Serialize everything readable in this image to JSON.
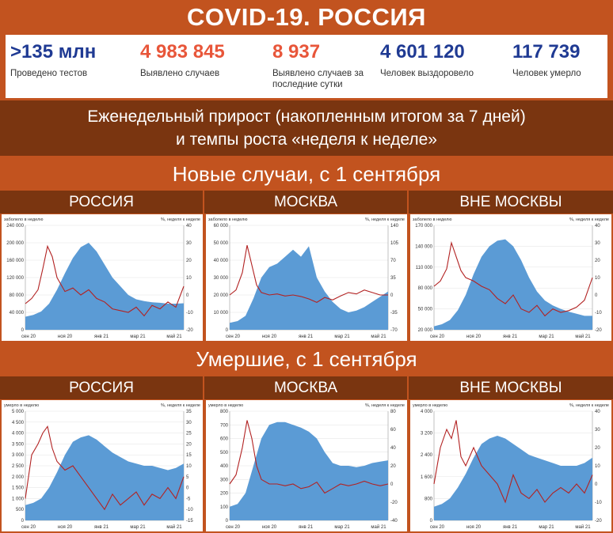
{
  "title": "COVID-19. РОССИЯ",
  "stats": [
    {
      "value": ">135 млн",
      "label": "Проведено тестов",
      "color": "#1f3a93"
    },
    {
      "value": "4 983 845",
      "label": "Выявлено случаев",
      "color": "#e8563a"
    },
    {
      "value": "8 937",
      "label": "Выявлено случаев за последние сутки",
      "color": "#e8563a"
    },
    {
      "value": "4 601 120",
      "label": "Человек выздоровело",
      "color": "#1f3a93"
    },
    {
      "value": "117 739",
      "label": "Человек умерло",
      "color": "#1f3a93"
    }
  ],
  "banner": {
    "line1": "Еженедельный прирост (накопленным итогом за 7 дней)",
    "line2": "и темпы роста «неделя к неделе»"
  },
  "section_cases": "Новые случаи, с 1 сентября",
  "section_deaths": "Умершие, с 1 сентября",
  "colors": {
    "area": "#5b9bd5",
    "line": "#b22222"
  },
  "chart_data": [
    {
      "id": "cases-russia",
      "type": "area",
      "region": "РОССИЯ",
      "ylabel": "заболело в неделю",
      "y2label": "%, неделя к неделе",
      "ylim": [
        0,
        240000
      ],
      "yticks": [
        "0",
        "40 000",
        "80 000",
        "120 000",
        "160 000",
        "200 000",
        "240 000"
      ],
      "y2lim": [
        -20,
        40
      ],
      "y2ticks": [
        "-20",
        "-10",
        "0",
        "10",
        "20",
        "30",
        "40"
      ],
      "xticks": [
        "сен 20",
        "ноя 20",
        "янв 21",
        "мар 21",
        "май 21"
      ],
      "series": [
        {
          "name": "",
          "kind": "area",
          "x": [
            0,
            0.05,
            0.1,
            0.15,
            0.2,
            0.25,
            0.3,
            0.35,
            0.4,
            0.45,
            0.5,
            0.55,
            0.6,
            0.65,
            0.7,
            0.75,
            0.8,
            0.85,
            0.9,
            0.95,
            1
          ],
          "values": [
            30000,
            34000,
            42000,
            60000,
            92000,
            130000,
            165000,
            190000,
            200000,
            180000,
            150000,
            120000,
            100000,
            80000,
            70000,
            66000,
            63000,
            62000,
            60000,
            60000,
            61000
          ]
        },
        {
          "name": "",
          "kind": "line",
          "x": [
            0,
            0.04,
            0.08,
            0.11,
            0.14,
            0.17,
            0.2,
            0.25,
            0.3,
            0.35,
            0.4,
            0.45,
            0.5,
            0.55,
            0.6,
            0.65,
            0.7,
            0.75,
            0.8,
            0.85,
            0.9,
            0.95,
            1
          ],
          "values": [
            -5,
            -2,
            3,
            15,
            28,
            22,
            10,
            2,
            4,
            0,
            3,
            -2,
            -4,
            -8,
            -9,
            -10,
            -7,
            -12,
            -6,
            -8,
            -4,
            -7,
            5
          ]
        }
      ]
    },
    {
      "id": "cases-moscow",
      "type": "area",
      "region": "МОСКВА",
      "ylabel": "заболело в неделю",
      "y2label": "%, неделя к неделе",
      "ylim": [
        0,
        60000
      ],
      "yticks": [
        "0",
        "10 000",
        "20 000",
        "30 000",
        "40 000",
        "50 000",
        "60 000"
      ],
      "y2lim": [
        -70,
        140
      ],
      "y2ticks": [
        "-70",
        "-35",
        "0",
        "35",
        "70",
        "105",
        "140"
      ],
      "xticks": [
        "сен 20",
        "ноя 20",
        "янв 21",
        "мар 21",
        "май 21"
      ],
      "series": [
        {
          "name": "",
          "kind": "area",
          "x": [
            0,
            0.05,
            0.1,
            0.15,
            0.2,
            0.25,
            0.3,
            0.35,
            0.4,
            0.45,
            0.5,
            0.55,
            0.6,
            0.65,
            0.7,
            0.75,
            0.8,
            0.85,
            0.9,
            0.95,
            1
          ],
          "values": [
            4000,
            5000,
            8000,
            18000,
            30000,
            36000,
            38000,
            42000,
            46000,
            42000,
            48000,
            30000,
            22000,
            16000,
            12000,
            10000,
            11000,
            13000,
            16000,
            19000,
            22000
          ]
        },
        {
          "name": "",
          "kind": "line",
          "x": [
            0,
            0.04,
            0.08,
            0.11,
            0.14,
            0.17,
            0.2,
            0.25,
            0.3,
            0.35,
            0.4,
            0.45,
            0.5,
            0.55,
            0.6,
            0.65,
            0.7,
            0.75,
            0.8,
            0.85,
            0.9,
            0.95,
            1
          ],
          "values": [
            0,
            10,
            45,
            100,
            60,
            20,
            5,
            0,
            2,
            -2,
            0,
            -3,
            -8,
            -15,
            -5,
            -10,
            -2,
            5,
            2,
            10,
            5,
            0,
            0
          ]
        }
      ]
    },
    {
      "id": "cases-outside",
      "type": "area",
      "region": "ВНЕ МОСКВЫ",
      "ylabel": "заболело в неделю",
      "y2label": "%, неделя к неделе",
      "ylim": [
        20000,
        170000
      ],
      "yticks": [
        "20 000",
        "50 000",
        "80 000",
        "110 000",
        "140 000",
        "170 000"
      ],
      "y2lim": [
        -20,
        40
      ],
      "y2ticks": [
        "-20",
        "-10",
        "0",
        "10",
        "20",
        "30",
        "40"
      ],
      "xticks": [
        "сен 20",
        "ноя 20",
        "янв 21",
        "мар 21",
        "май 21"
      ],
      "series": [
        {
          "name": "",
          "kind": "area",
          "x": [
            0,
            0.05,
            0.1,
            0.15,
            0.2,
            0.25,
            0.3,
            0.35,
            0.4,
            0.45,
            0.5,
            0.55,
            0.6,
            0.65,
            0.7,
            0.75,
            0.8,
            0.85,
            0.9,
            0.95,
            1
          ],
          "values": [
            25000,
            28000,
            34000,
            48000,
            70000,
            100000,
            125000,
            140000,
            148000,
            150000,
            140000,
            120000,
            95000,
            75000,
            62000,
            55000,
            50000,
            46000,
            43000,
            40000,
            40000
          ]
        },
        {
          "name": "",
          "kind": "line",
          "x": [
            0,
            0.04,
            0.08,
            0.11,
            0.14,
            0.17,
            0.2,
            0.25,
            0.3,
            0.35,
            0.4,
            0.45,
            0.5,
            0.55,
            0.6,
            0.65,
            0.7,
            0.75,
            0.8,
            0.85,
            0.9,
            0.95,
            1
          ],
          "values": [
            5,
            8,
            15,
            30,
            22,
            14,
            10,
            8,
            5,
            3,
            -2,
            -5,
            0,
            -8,
            -10,
            -6,
            -12,
            -8,
            -10,
            -9,
            -7,
            -3,
            10
          ]
        }
      ]
    },
    {
      "id": "deaths-russia",
      "type": "area",
      "region": "РОССИЯ",
      "ylabel": "умерло в неделю",
      "y2label": "%, неделя к неделе",
      "ylim": [
        0,
        5000
      ],
      "yticks": [
        "0",
        "500",
        "1 000",
        "1 500",
        "2 000",
        "2 500",
        "3 000",
        "3 500",
        "4 000",
        "4 500",
        "5 000"
      ],
      "y2lim": [
        -15,
        35
      ],
      "y2ticks": [
        "-15",
        "-10",
        "-5",
        "0",
        "5",
        "10",
        "15",
        "20",
        "25",
        "30",
        "35"
      ],
      "xticks": [
        "сен 20",
        "ноя 20",
        "янв 21",
        "мар 21",
        "май 21"
      ],
      "series": [
        {
          "name": "",
          "kind": "area",
          "x": [
            0,
            0.05,
            0.1,
            0.15,
            0.2,
            0.25,
            0.3,
            0.35,
            0.4,
            0.45,
            0.5,
            0.55,
            0.6,
            0.65,
            0.7,
            0.75,
            0.8,
            0.85,
            0.9,
            0.95,
            1
          ],
          "values": [
            700,
            800,
            1000,
            1500,
            2200,
            3000,
            3600,
            3800,
            3900,
            3700,
            3400,
            3100,
            2900,
            2700,
            2600,
            2500,
            2500,
            2400,
            2300,
            2400,
            2600
          ]
        },
        {
          "name": "",
          "kind": "line",
          "x": [
            0,
            0.04,
            0.08,
            0.11,
            0.14,
            0.17,
            0.2,
            0.25,
            0.3,
            0.35,
            0.4,
            0.45,
            0.5,
            0.55,
            0.6,
            0.65,
            0.7,
            0.75,
            0.8,
            0.85,
            0.9,
            0.95,
            1
          ],
          "values": [
            -5,
            15,
            20,
            25,
            28,
            18,
            12,
            8,
            10,
            5,
            0,
            -5,
            -10,
            -3,
            -8,
            -5,
            -2,
            -8,
            -3,
            -5,
            0,
            -5,
            5
          ]
        }
      ]
    },
    {
      "id": "deaths-moscow",
      "type": "area",
      "region": "МОСКВА",
      "ylabel": "умерло в неделю",
      "y2label": "%, неделя к неделе",
      "ylim": [
        0,
        800
      ],
      "yticks": [
        "0",
        "100",
        "200",
        "300",
        "400",
        "500",
        "600",
        "700",
        "800"
      ],
      "y2lim": [
        -40,
        80
      ],
      "y2ticks": [
        "-40",
        "-20",
        "0",
        "20",
        "40",
        "60",
        "80"
      ],
      "xticks": [
        "сен 20",
        "ноя 20",
        "янв 21",
        "мар 21",
        "май 21"
      ],
      "series": [
        {
          "name": "",
          "kind": "area",
          "x": [
            0,
            0.05,
            0.1,
            0.15,
            0.2,
            0.25,
            0.3,
            0.35,
            0.4,
            0.45,
            0.5,
            0.55,
            0.6,
            0.65,
            0.7,
            0.75,
            0.8,
            0.85,
            0.9,
            0.95,
            1
          ],
          "values": [
            100,
            120,
            200,
            400,
            600,
            700,
            720,
            720,
            700,
            680,
            650,
            600,
            500,
            420,
            400,
            400,
            390,
            400,
            420,
            430,
            440
          ]
        },
        {
          "name": "",
          "kind": "line",
          "x": [
            0,
            0.04,
            0.08,
            0.11,
            0.14,
            0.17,
            0.2,
            0.25,
            0.3,
            0.35,
            0.4,
            0.45,
            0.5,
            0.55,
            0.6,
            0.65,
            0.7,
            0.75,
            0.8,
            0.85,
            0.9,
            0.95,
            1
          ],
          "values": [
            0,
            10,
            40,
            70,
            50,
            20,
            5,
            0,
            0,
            -2,
            0,
            -5,
            -3,
            2,
            -10,
            -5,
            0,
            -2,
            0,
            3,
            0,
            -2,
            0
          ]
        }
      ]
    },
    {
      "id": "deaths-outside",
      "type": "area",
      "region": "ВНЕ МОСКВЫ",
      "ylabel": "умерло в неделю",
      "y2label": "%, неделя к неделе",
      "ylim": [
        0,
        4000
      ],
      "yticks": [
        "0",
        "800",
        "1 600",
        "2 400",
        "3 200",
        "4 000"
      ],
      "y2lim": [
        -20,
        40
      ],
      "y2ticks": [
        "-20",
        "-10",
        "0",
        "10",
        "20",
        "30",
        "40"
      ],
      "xticks": [
        "сен 20",
        "ноя 20",
        "янв 21",
        "мар 21",
        "май 21"
      ],
      "series": [
        {
          "name": "",
          "kind": "area",
          "x": [
            0,
            0.05,
            0.1,
            0.15,
            0.2,
            0.25,
            0.3,
            0.35,
            0.4,
            0.45,
            0.5,
            0.55,
            0.6,
            0.65,
            0.7,
            0.75,
            0.8,
            0.85,
            0.9,
            0.95,
            1
          ],
          "values": [
            500,
            600,
            800,
            1200,
            1700,
            2300,
            2800,
            3000,
            3100,
            3000,
            2800,
            2600,
            2400,
            2300,
            2200,
            2100,
            2000,
            2000,
            2000,
            2100,
            2300
          ]
        },
        {
          "name": "",
          "kind": "line",
          "x": [
            0,
            0.04,
            0.08,
            0.11,
            0.14,
            0.17,
            0.2,
            0.25,
            0.3,
            0.35,
            0.4,
            0.45,
            0.5,
            0.55,
            0.6,
            0.65,
            0.7,
            0.75,
            0.8,
            0.85,
            0.9,
            0.95,
            1
          ],
          "values": [
            0,
            20,
            30,
            25,
            35,
            15,
            10,
            20,
            10,
            5,
            0,
            -10,
            5,
            -5,
            -8,
            -3,
            -10,
            -5,
            -2,
            -5,
            0,
            -5,
            5
          ]
        }
      ]
    }
  ]
}
